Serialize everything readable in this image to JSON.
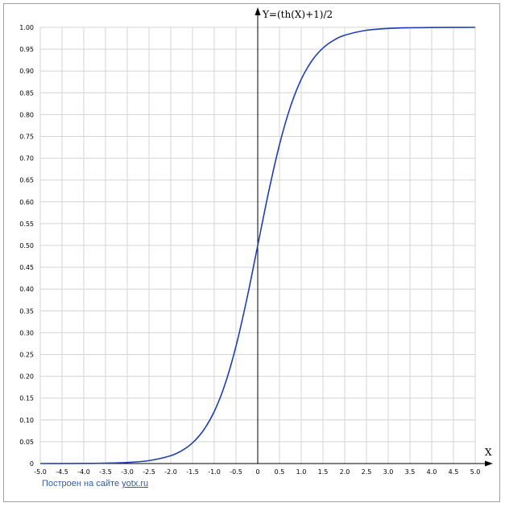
{
  "chart_data": {
    "type": "line",
    "title": "",
    "xlabel": "X",
    "ylabel": "Y=(th(X)+1)/2",
    "xlim": [
      -5.0,
      5.0
    ],
    "ylim": [
      0,
      1.0
    ],
    "grid": true,
    "x_ticks": [
      "-5.0",
      "-4.5",
      "-4.0",
      "-3.5",
      "-3.0",
      "-2.5",
      "-2.0",
      "-1.5",
      "-1.0",
      "-0.5",
      "0",
      "0.5",
      "1.0",
      "1.5",
      "2.0",
      "2.5",
      "3.0",
      "3.5",
      "4.0",
      "4.5",
      "5.0"
    ],
    "y_ticks": [
      "0",
      "0.05",
      "0.10",
      "0.15",
      "0.20",
      "0.25",
      "0.30",
      "0.35",
      "0.40",
      "0.45",
      "0.50",
      "0.55",
      "0.60",
      "0.65",
      "0.70",
      "0.75",
      "0.80",
      "0.85",
      "0.90",
      "0.95",
      "1.00"
    ],
    "series": [
      {
        "color": "#2040b0",
        "x": [
          -5.0,
          -4.5,
          -4.0,
          -3.5,
          -3.0,
          -2.5,
          -2.0,
          -1.75,
          -1.5,
          -1.25,
          -1.0,
          -0.75,
          -0.5,
          -0.25,
          0,
          0.25,
          0.5,
          0.75,
          1.0,
          1.25,
          1.5,
          1.75,
          2.0,
          2.5,
          3.0,
          3.5,
          4.0,
          4.5,
          5.0
        ],
        "y": [
          0.0,
          0.0001,
          0.0003,
          0.0009,
          0.0025,
          0.0067,
          0.018,
          0.0293,
          0.0474,
          0.0759,
          0.1192,
          0.1824,
          0.2689,
          0.3775,
          0.5,
          0.6225,
          0.7311,
          0.8176,
          0.8808,
          0.9241,
          0.9526,
          0.9707,
          0.982,
          0.9933,
          0.9975,
          0.9991,
          0.9997,
          0.9999,
          1.0
        ]
      }
    ]
  },
  "footer": {
    "text": "Построен на сайте",
    "link": "yotx.ru"
  }
}
